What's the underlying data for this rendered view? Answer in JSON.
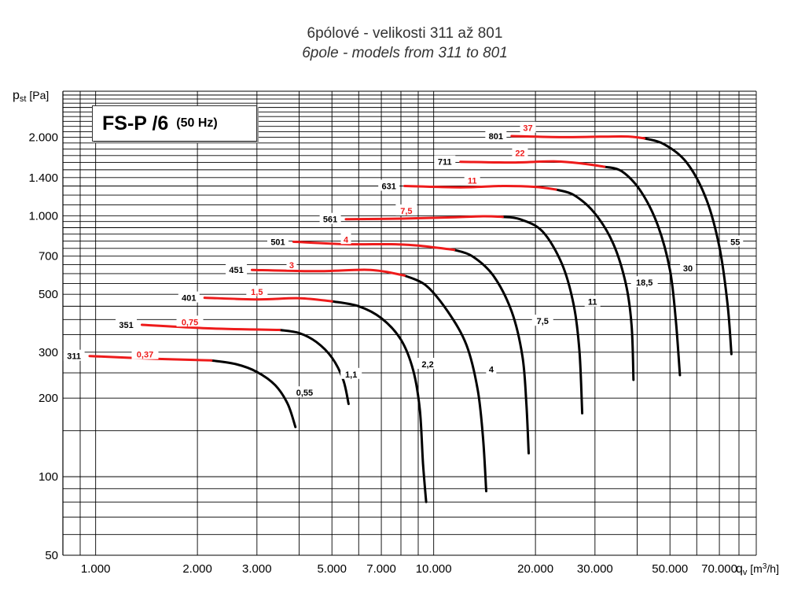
{
  "chart_data": {
    "type": "line",
    "title": "6pólové - velikosti 311 až 801",
    "subtitle": "6pole - models from 311 to 801",
    "model_badge": "FS-P /6",
    "frequency_badge": "(50 Hz)",
    "xlabel": "qv [m3/h]",
    "ylabel": "pst [Pa]",
    "x_scale": "log",
    "y_scale": "log",
    "xlim": [
      800,
      90000
    ],
    "ylim": [
      50,
      3000
    ],
    "grid": true,
    "x_ticks": [
      {
        "value": 1000,
        "label": "1.000"
      },
      {
        "value": 2000,
        "label": "2.000"
      },
      {
        "value": 3000,
        "label": "3.000"
      },
      {
        "value": 5000,
        "label": "5.000"
      },
      {
        "value": 7000,
        "label": "7.000"
      },
      {
        "value": 10000,
        "label": "10.000"
      },
      {
        "value": 20000,
        "label": "20.000"
      },
      {
        "value": 30000,
        "label": "30.000"
      },
      {
        "value": 50000,
        "label": "50.000"
      },
      {
        "value": 70000,
        "label": "70.000"
      }
    ],
    "y_ticks": [
      {
        "value": 50,
        "label": "50"
      },
      {
        "value": 100,
        "label": "100"
      },
      {
        "value": 200,
        "label": "200"
      },
      {
        "value": 300,
        "label": "300"
      },
      {
        "value": 500,
        "label": "500"
      },
      {
        "value": 700,
        "label": "700"
      },
      {
        "value": 1000,
        "label": "1.000"
      },
      {
        "value": 1400,
        "label": "1.400"
      },
      {
        "value": 2000,
        "label": "2.000"
      }
    ],
    "colors": {
      "red": "#ee1b1b",
      "black": "#000000",
      "grid": "#000000"
    },
    "series": [
      {
        "name": "311",
        "power_red": "0,37",
        "power_black": "0,55",
        "red": [
          [
            960,
            290
          ],
          [
            1500,
            283
          ],
          [
            2200,
            279
          ]
        ],
        "black": [
          [
            2200,
            279
          ],
          [
            2600,
            270
          ],
          [
            3000,
            252
          ],
          [
            3400,
            224
          ],
          [
            3700,
            190
          ],
          [
            3900,
            155
          ]
        ],
        "red_label_at": [
          1400,
          294
        ],
        "black_label_at": [
          4150,
          210
        ]
      },
      {
        "name": "351",
        "power_red": "0,75",
        "power_black": "1,1",
        "red": [
          [
            1370,
            382
          ],
          [
            2200,
            370
          ],
          [
            3500,
            365
          ]
        ],
        "black": [
          [
            3500,
            365
          ],
          [
            4000,
            355
          ],
          [
            4500,
            328
          ],
          [
            5000,
            286
          ],
          [
            5400,
            235
          ],
          [
            5600,
            190
          ]
        ],
        "red_label_at": [
          1900,
          392
        ],
        "black_label_at": [
          5700,
          247
        ]
      },
      {
        "name": "401",
        "power_red": "1,5",
        "power_black": "2,2",
        "red": [
          [
            2100,
            485
          ],
          [
            3000,
            478
          ],
          [
            4000,
            483
          ],
          [
            5000,
            470
          ]
        ],
        "black": [
          [
            5000,
            470
          ],
          [
            6000,
            450
          ],
          [
            7000,
            405
          ],
          [
            8000,
            335
          ],
          [
            8700,
            255
          ],
          [
            9100,
            180
          ],
          [
            9300,
            112
          ],
          [
            9500,
            80
          ]
        ],
        "red_label_at": [
          3000,
          512
        ],
        "black_label_at": [
          9600,
          270
        ]
      },
      {
        "name": "451",
        "power_red": "3",
        "power_black": "4",
        "red": [
          [
            2900,
            620
          ],
          [
            4500,
            613
          ],
          [
            6500,
            620
          ],
          [
            8200,
            590
          ]
        ],
        "black": [
          [
            8200,
            590
          ],
          [
            9500,
            540
          ],
          [
            11000,
            430
          ],
          [
            12500,
            320
          ],
          [
            13500,
            215
          ],
          [
            14000,
            140
          ],
          [
            14300,
            88
          ]
        ],
        "red_label_at": [
          3800,
          648
        ],
        "black_label_at": [
          14800,
          258
        ]
      },
      {
        "name": "501",
        "power_red": "4",
        "power_black": "7,5",
        "red": [
          [
            3850,
            795
          ],
          [
            5500,
            778
          ],
          [
            7500,
            778
          ],
          [
            9000,
            768
          ],
          [
            11500,
            740
          ]
        ],
        "black": [
          [
            11500,
            740
          ],
          [
            13000,
            700
          ],
          [
            15000,
            590
          ],
          [
            17000,
            430
          ],
          [
            18300,
            290
          ],
          [
            18800,
            190
          ],
          [
            19100,
            123
          ]
        ],
        "red_label_at": [
          5500,
          812
        ],
        "black_label_at": [
          21000,
          395
        ]
      },
      {
        "name": "561",
        "power_red": "7,5",
        "power_black": "11",
        "red": [
          [
            5500,
            970
          ],
          [
            8000,
            975
          ],
          [
            11000,
            985
          ],
          [
            14000,
            995
          ],
          [
            16000,
            990
          ]
        ],
        "black": [
          [
            16000,
            990
          ],
          [
            18000,
            970
          ],
          [
            21000,
            870
          ],
          [
            24000,
            650
          ],
          [
            26000,
            450
          ],
          [
            27000,
            300
          ],
          [
            27500,
            175
          ]
        ],
        "red_label_at": [
          8300,
          1045
        ],
        "black_label_at": [
          29500,
          468
        ]
      },
      {
        "name": "631",
        "power_red": "11",
        "power_black": "18,5",
        "red": [
          [
            8200,
            1300
          ],
          [
            12000,
            1285
          ],
          [
            16000,
            1300
          ],
          [
            20000,
            1290
          ],
          [
            23000,
            1260
          ]
        ],
        "black": [
          [
            23000,
            1260
          ],
          [
            26000,
            1200
          ],
          [
            30000,
            1020
          ],
          [
            34000,
            780
          ],
          [
            37000,
            550
          ],
          [
            38500,
            380
          ],
          [
            39000,
            235
          ]
        ],
        "red_label_at": [
          13000,
          1365
        ],
        "black_label_at": [
          42000,
          555
        ]
      },
      {
        "name": "711",
        "power_red": "22",
        "power_black": "30",
        "red": [
          [
            12000,
            1610
          ],
          [
            17000,
            1600
          ],
          [
            23000,
            1615
          ],
          [
            28000,
            1580
          ],
          [
            32000,
            1540
          ]
        ],
        "black": [
          [
            32000,
            1540
          ],
          [
            36000,
            1480
          ],
          [
            41000,
            1240
          ],
          [
            46000,
            920
          ],
          [
            50000,
            620
          ],
          [
            52000,
            400
          ],
          [
            53500,
            245
          ]
        ],
        "red_label_at": [
          18000,
          1740
        ],
        "black_label_at": [
          56500,
          630
        ]
      },
      {
        "name": "801",
        "power_red": "37",
        "power_black": "55",
        "red": [
          [
            17000,
            2020
          ],
          [
            24000,
            2000
          ],
          [
            32000,
            2010
          ],
          [
            38000,
            2010
          ],
          [
            42000,
            1980
          ]
        ],
        "black": [
          [
            42000,
            1980
          ],
          [
            48000,
            1880
          ],
          [
            56000,
            1600
          ],
          [
            64000,
            1160
          ],
          [
            70000,
            760
          ],
          [
            74000,
            460
          ],
          [
            76000,
            295
          ]
        ],
        "red_label_at": [
          19000,
          2170
        ],
        "black_label_at": [
          78000,
          795
        ]
      }
    ]
  }
}
